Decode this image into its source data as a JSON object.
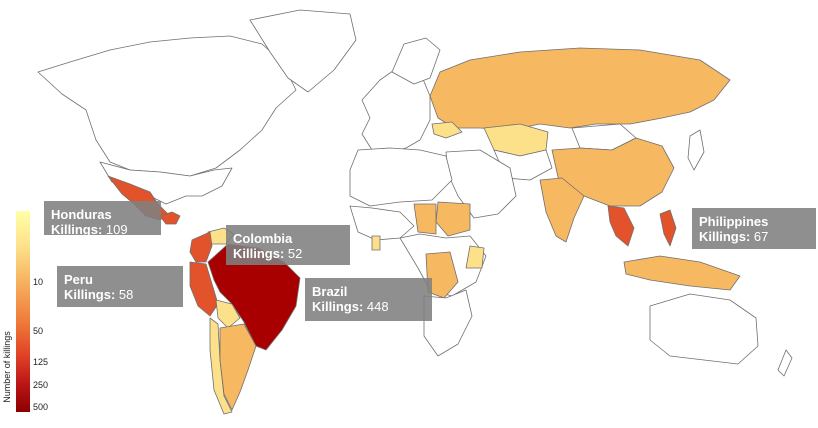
{
  "legend": {
    "title": "Number of killings",
    "ticks": [
      "10",
      "50",
      "125",
      "250",
      "500"
    ]
  },
  "tooltips": [
    {
      "id": "honduras",
      "country": "Honduras",
      "label": "Killings:",
      "value": "109"
    },
    {
      "id": "colombia",
      "country": "Colombia",
      "label": "Killings:",
      "value": "52"
    },
    {
      "id": "peru",
      "country": "Peru",
      "label": "Killings:",
      "value": "58"
    },
    {
      "id": "brazil",
      "country": "Brazil",
      "label": "Killings:",
      "value": "448"
    },
    {
      "id": "philippines",
      "country": "Philippines",
      "label": "Killings:",
      "value": "67"
    }
  ],
  "colors": {
    "none": "#ffffff",
    "pale": "#fdf08c",
    "light": "#f7b862",
    "mid": "#ef8a43",
    "high": "#e2532b",
    "max": "#a80000"
  }
}
